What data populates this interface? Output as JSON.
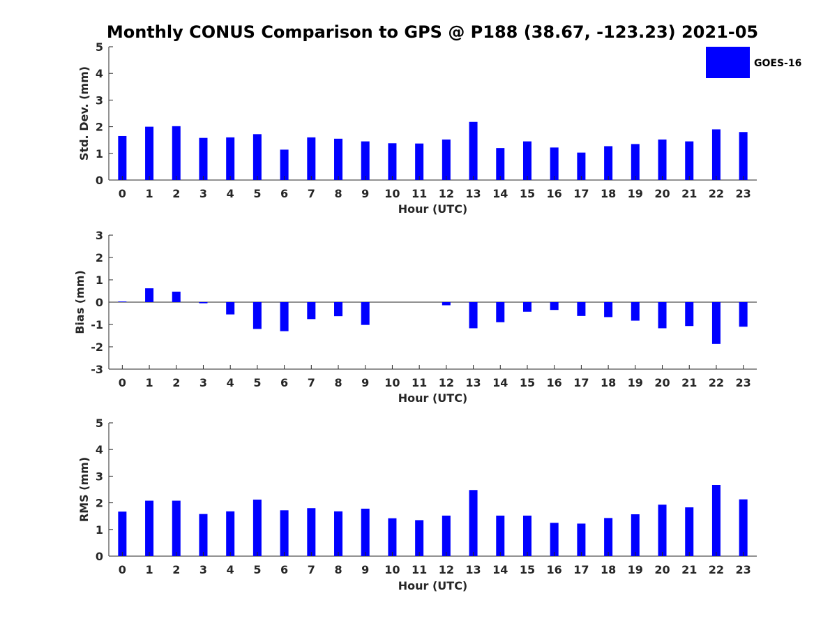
{
  "title": "Monthly CONUS Comparison to GPS @ P188 (38.67, -123.23) 2021-05",
  "legend": {
    "label": "GOES-16",
    "color": "#0000ff"
  },
  "chart_data": [
    {
      "type": "bar",
      "title": "Monthly CONUS Comparison to GPS @ P188 (38.67, -123.23) 2021-05",
      "xlabel": "Hour (UTC)",
      "ylabel": "Std. Dev. (mm)",
      "ylim": [
        0,
        5
      ],
      "yticks": [
        "0",
        "1",
        "2",
        "3",
        "4",
        "5"
      ],
      "categories": [
        "0",
        "1",
        "2",
        "3",
        "4",
        "5",
        "6",
        "7",
        "8",
        "9",
        "10",
        "11",
        "12",
        "13",
        "14",
        "15",
        "16",
        "17",
        "18",
        "19",
        "20",
        "21",
        "22",
        "23"
      ],
      "series": [
        {
          "name": "GOES-16",
          "color": "#0000ff",
          "values": [
            1.65,
            2.0,
            2.02,
            1.58,
            1.6,
            1.72,
            1.14,
            1.6,
            1.55,
            1.45,
            1.38,
            1.37,
            1.52,
            2.18,
            1.2,
            1.45,
            1.22,
            1.03,
            1.27,
            1.35,
            1.52,
            1.45,
            1.9,
            1.8
          ]
        }
      ]
    },
    {
      "type": "bar",
      "xlabel": "Hour (UTC)",
      "ylabel": "Bias (mm)",
      "ylim": [
        -3,
        3
      ],
      "yticks": [
        "-3",
        "-2",
        "-1",
        "0",
        "1",
        "2",
        "3"
      ],
      "categories": [
        "0",
        "1",
        "2",
        "3",
        "4",
        "5",
        "6",
        "7",
        "8",
        "9",
        "10",
        "11",
        "12",
        "13",
        "14",
        "15",
        "16",
        "17",
        "18",
        "19",
        "20",
        "21",
        "22",
        "23"
      ],
      "series": [
        {
          "name": "GOES-16",
          "color": "#0000ff",
          "values": [
            0.03,
            0.62,
            0.47,
            -0.05,
            -0.55,
            -1.2,
            -1.3,
            -0.76,
            -0.63,
            -1.02,
            0.0,
            0.0,
            -0.14,
            -1.17,
            -0.9,
            -0.43,
            -0.35,
            -0.62,
            -0.67,
            -0.83,
            -1.17,
            -1.07,
            -1.87,
            -1.1
          ]
        }
      ]
    },
    {
      "type": "bar",
      "xlabel": "Hour (UTC)",
      "ylabel": "RMS (mm)",
      "ylim": [
        0,
        5
      ],
      "yticks": [
        "0",
        "1",
        "2",
        "3",
        "4",
        "5"
      ],
      "categories": [
        "0",
        "1",
        "2",
        "3",
        "4",
        "5",
        "6",
        "7",
        "8",
        "9",
        "10",
        "11",
        "12",
        "13",
        "14",
        "15",
        "16",
        "17",
        "18",
        "19",
        "20",
        "21",
        "22",
        "23"
      ],
      "series": [
        {
          "name": "GOES-16",
          "color": "#0000ff",
          "values": [
            1.67,
            2.08,
            2.08,
            1.58,
            1.68,
            2.12,
            1.72,
            1.8,
            1.68,
            1.78,
            1.42,
            1.35,
            1.52,
            2.48,
            1.52,
            1.52,
            1.25,
            1.22,
            1.43,
            1.57,
            1.93,
            1.83,
            2.67,
            2.13
          ]
        }
      ]
    }
  ]
}
